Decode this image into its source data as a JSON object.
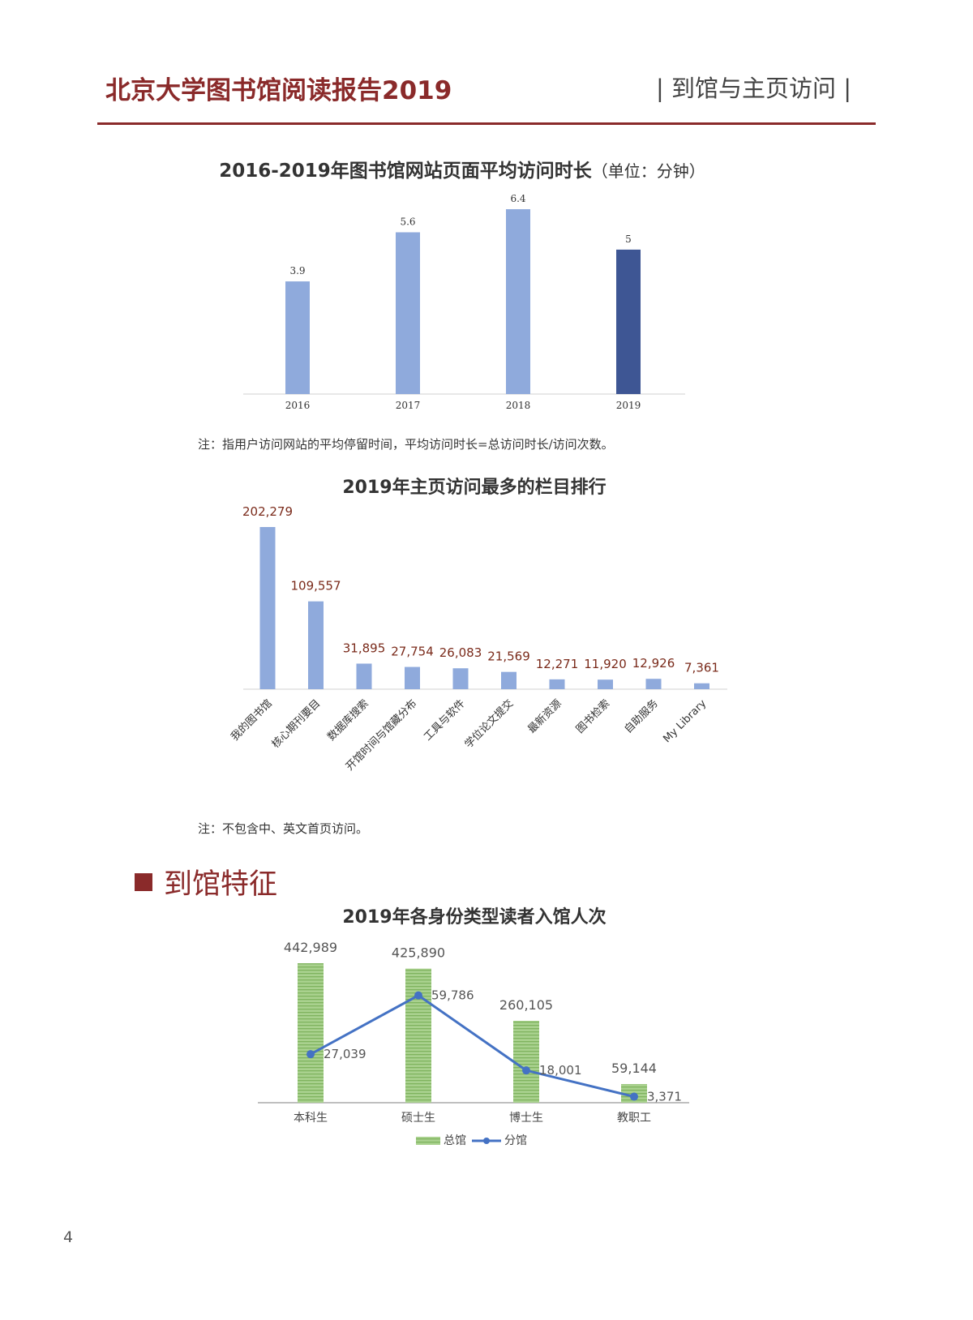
{
  "header": {
    "report_title": "北京大学图书馆阅读报告2019",
    "section_label": "| 到馆与主页访问 |"
  },
  "section_heading": "到馆特征",
  "page_number": "4",
  "colors": {
    "brand": "#8a2a2a",
    "bar_light": "#8faadc",
    "bar_dark": "#3e5694",
    "bar_green": "#93c47d",
    "line_blue": "#4472c4",
    "value_label_dark": "#7a2a1a"
  },
  "chart_data": [
    {
      "type": "bar",
      "title": "2016-2019年图书馆网站页面平均访问时长",
      "title_unit": "（单位：分钟）",
      "categories": [
        "2016",
        "2017",
        "2018",
        "2019"
      ],
      "values": [
        3.9,
        5.6,
        6.4,
        5
      ],
      "value_labels": [
        "3.9",
        "5.6",
        "6.4",
        "5"
      ],
      "highlight_index": 3,
      "ylim": [
        0,
        6.4
      ],
      "grid": false,
      "note": "注：指用户访问网站的平均停留时间，平均访问时长=总访问时长/访问次数。"
    },
    {
      "type": "bar",
      "title": "2019年主页访问最多的栏目排行",
      "categories": [
        "我的图书馆",
        "核心期刊要目",
        "数据库搜索",
        "开馆时间与馆藏分布",
        "工具与软件",
        "学位论文提交",
        "最新资源",
        "图书检索",
        "自助服务",
        "My Library"
      ],
      "values": [
        202279,
        109557,
        31895,
        27754,
        26083,
        21569,
        12271,
        11920,
        12926,
        7361
      ],
      "value_labels": [
        "202,279",
        "109,557",
        "31,895",
        "27,754",
        "26,083",
        "21,569",
        "12,271",
        "11,920",
        "12,926",
        "7,361"
      ],
      "ylim": [
        0,
        202279
      ],
      "grid": false,
      "note": "注：不包含中、英文首页访问。"
    },
    {
      "type": "bar",
      "title": "2019年各身份类型读者入馆人次",
      "categories": [
        "本科生",
        "硕士生",
        "博士生",
        "教职工"
      ],
      "series": [
        {
          "name": "总馆",
          "type": "bar",
          "values": [
            442989,
            425890,
            260105,
            59144
          ],
          "value_labels": [
            "442,989",
            "425,890",
            "260,105",
            "59,144"
          ]
        },
        {
          "name": "分馆",
          "type": "line",
          "values": [
            27039,
            59786,
            18001,
            3371
          ],
          "value_labels": [
            "27,039",
            "59,786",
            "18,001",
            "3,371"
          ]
        }
      ],
      "grid": false,
      "legend": "bottom"
    }
  ]
}
